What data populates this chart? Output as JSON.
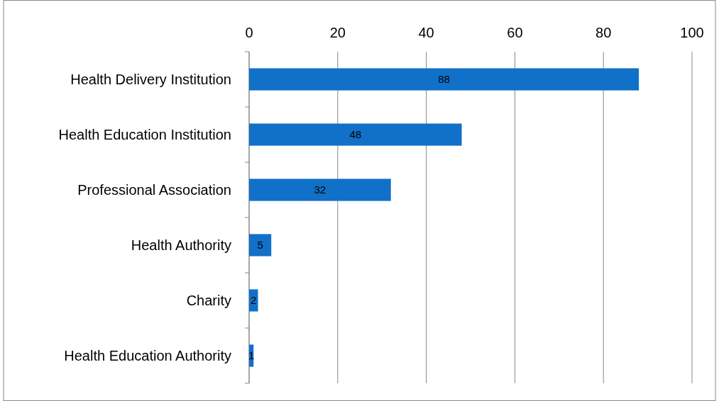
{
  "chart_data": {
    "type": "bar",
    "orientation": "horizontal",
    "categories": [
      "Health Delivery Institution",
      "Health Education Institution",
      "Professional Association",
      "Health Authority",
      "Charity",
      "Health Education Authority"
    ],
    "values": [
      88,
      48,
      32,
      5,
      2,
      1
    ],
    "color": "#1170c8",
    "xlim": [
      0,
      100
    ],
    "xticks": [
      0,
      20,
      40,
      60,
      80,
      100
    ],
    "grid": "x",
    "data_labels": true
  }
}
